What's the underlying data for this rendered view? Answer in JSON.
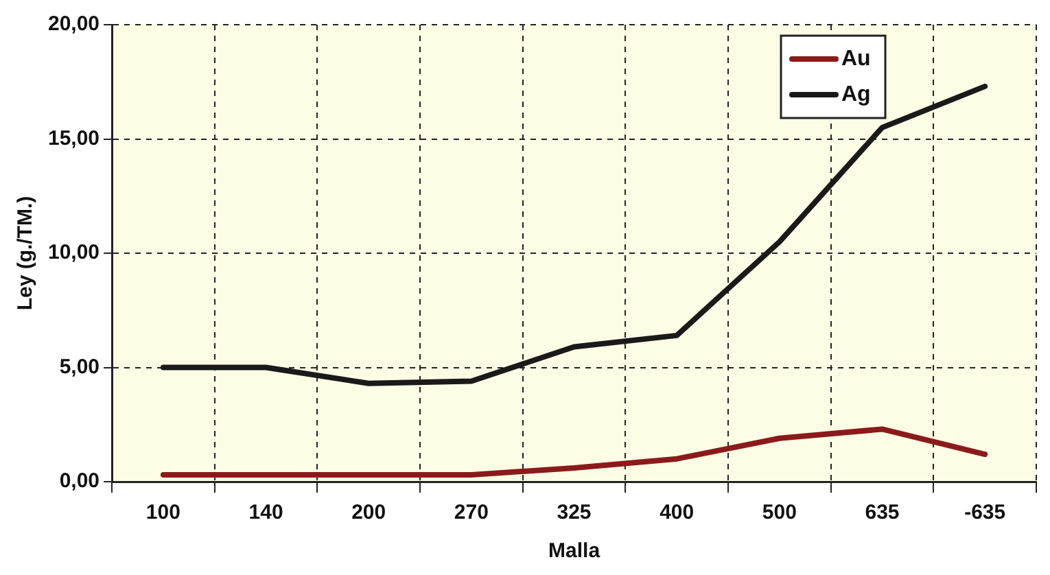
{
  "chart_data": {
    "type": "line",
    "xlabel": "Malla",
    "ylabel": "Ley (g./TM.)",
    "categories": [
      "100",
      "140",
      "200",
      "270",
      "325",
      "400",
      "500",
      "635",
      "-635"
    ],
    "series": [
      {
        "name": "Au",
        "color": "#8b1a1a",
        "values": [
          0.3,
          0.3,
          0.3,
          0.3,
          0.6,
          1.0,
          1.9,
          2.3,
          1.2
        ]
      },
      {
        "name": "Ag",
        "color": "#1a1a1a",
        "values": [
          5.0,
          5.0,
          4.3,
          4.4,
          5.9,
          6.4,
          10.5,
          15.5,
          17.3
        ]
      }
    ],
    "ylim": [
      0,
      20
    ],
    "yticks": [
      {
        "value": 0,
        "label": "0,00"
      },
      {
        "value": 5,
        "label": "5,00"
      },
      {
        "value": 10,
        "label": "10,00"
      },
      {
        "value": 15,
        "label": "15,00"
      },
      {
        "value": 20,
        "label": "20,00"
      }
    ],
    "grid": true,
    "legend": "top right",
    "marker": "none",
    "line_style": "solid"
  }
}
